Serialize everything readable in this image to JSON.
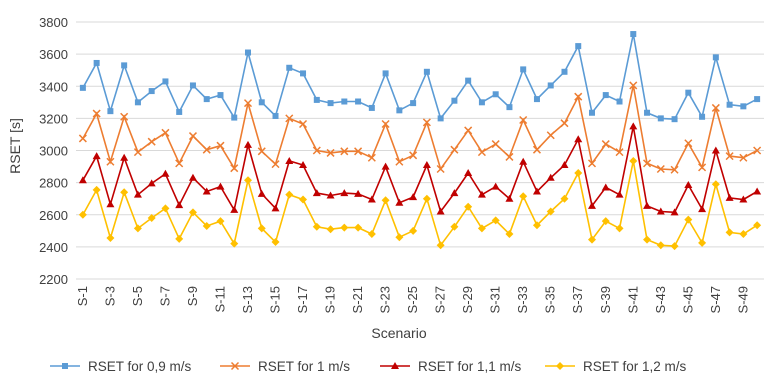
{
  "chart_data": {
    "type": "line",
    "xlabel": "Scenario",
    "ylabel": "RSET [s]",
    "ylim": [
      2200,
      3800
    ],
    "ytick_step": 200,
    "grid": "horizontal",
    "legend_position": "bottom",
    "categories": [
      "S-1",
      "S-2",
      "S-3",
      "S-4",
      "S-5",
      "S-6",
      "S-7",
      "S-8",
      "S-9",
      "S-10",
      "S-11",
      "S-12",
      "S-13",
      "S-14",
      "S-15",
      "S-16",
      "S-17",
      "S-18",
      "S-19",
      "S-20",
      "S-21",
      "S-22",
      "S-23",
      "S-24",
      "S-25",
      "S-26",
      "S-27",
      "S-28",
      "S-29",
      "S-30",
      "S-31",
      "S-32",
      "S-33",
      "S-34",
      "S-35",
      "S-36",
      "S-37",
      "S-38",
      "S-39",
      "S-40",
      "S-41",
      "S-42",
      "S-43",
      "S-44",
      "S-45",
      "S-46",
      "S-47",
      "S-48",
      "S-49",
      "S-50"
    ],
    "tick_labels": [
      "S-1",
      "S-3",
      "S-5",
      "S-7",
      "S-9",
      "S-11",
      "S-13",
      "S-15",
      "S-17",
      "S-19",
      "S-21",
      "S-23",
      "S-25",
      "S-27",
      "S-29",
      "S-31",
      "S-33",
      "S-35",
      "S-37",
      "S-39",
      "S-41",
      "S-43",
      "S-45",
      "S-47",
      "S-49"
    ],
    "series": [
      {
        "name": "RSET for 0,9 m/s",
        "color": "#5b9bd5",
        "marker": "square",
        "values": [
          3390,
          3545,
          3245,
          3530,
          3300,
          3370,
          3430,
          3240,
          3405,
          3320,
          3345,
          3205,
          3610,
          3300,
          3215,
          3515,
          3480,
          3315,
          3295,
          3305,
          3305,
          3265,
          3480,
          3250,
          3295,
          3490,
          3200,
          3310,
          3435,
          3300,
          3350,
          3270,
          3505,
          3320,
          3405,
          3490,
          3650,
          3235,
          3345,
          3305,
          3725,
          3235,
          3200,
          3195,
          3360,
          3210,
          3580,
          3285,
          3275,
          3320
        ]
      },
      {
        "name": "RSET for 1 m/s",
        "color": "#ed7d31",
        "marker": "x",
        "values": [
          3075,
          3230,
          2930,
          3210,
          2990,
          3055,
          3110,
          2920,
          3090,
          3005,
          3030,
          2890,
          3295,
          2995,
          2915,
          3200,
          3165,
          3000,
          2985,
          2995,
          2995,
          2955,
          3165,
          2930,
          2970,
          3175,
          2885,
          3005,
          3125,
          2990,
          3040,
          2960,
          3190,
          3005,
          3095,
          3170,
          3335,
          2920,
          3040,
          2990,
          3405,
          2920,
          2885,
          2880,
          3045,
          2895,
          3265,
          2965,
          2955,
          3000
        ]
      },
      {
        "name": "RSET for 1,1 m/s",
        "color": "#c00000",
        "marker": "triangle",
        "values": [
          2815,
          2965,
          2665,
          2955,
          2725,
          2795,
          2855,
          2660,
          2830,
          2745,
          2775,
          2630,
          3035,
          2730,
          2640,
          2935,
          2910,
          2735,
          2720,
          2735,
          2730,
          2695,
          2900,
          2675,
          2710,
          2910,
          2620,
          2735,
          2860,
          2725,
          2775,
          2700,
          2930,
          2745,
          2830,
          2910,
          3070,
          2655,
          2770,
          2725,
          3150,
          2655,
          2620,
          2615,
          2785,
          2635,
          3000,
          2705,
          2695,
          2745
        ]
      },
      {
        "name": "RSET for 1,2 m/s",
        "color": "#ffc000",
        "marker": "diamond",
        "values": [
          2600,
          2755,
          2455,
          2740,
          2515,
          2580,
          2640,
          2450,
          2615,
          2530,
          2560,
          2420,
          2815,
          2515,
          2430,
          2725,
          2695,
          2525,
          2510,
          2520,
          2520,
          2480,
          2690,
          2460,
          2500,
          2700,
          2410,
          2525,
          2650,
          2515,
          2565,
          2480,
          2715,
          2535,
          2620,
          2700,
          2860,
          2445,
          2560,
          2515,
          2935,
          2445,
          2410,
          2405,
          2570,
          2425,
          2790,
          2490,
          2480,
          2535
        ]
      }
    ]
  }
}
